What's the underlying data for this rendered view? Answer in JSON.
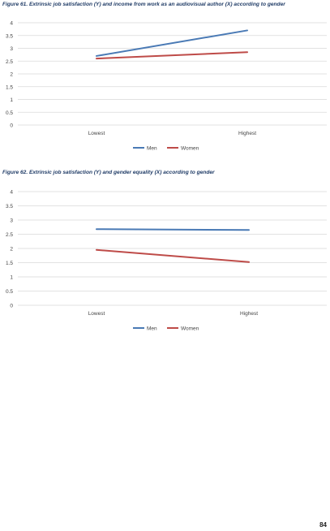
{
  "page": {
    "number": "84"
  },
  "figures": [
    {
      "caption": "Figure 61. Extrinsic job satisfaction (Y) and income from work as an audiovisual author (X) according to gender"
    },
    {
      "caption": "Figure 62. Extrinsic job satisfaction (Y) and gender equality (X) according to gender"
    }
  ],
  "colors": {
    "men": "#4a7ab5",
    "women": "#be4b48",
    "grid": "#d9d9d9",
    "text": "#444444"
  },
  "chart_data": [
    {
      "type": "line",
      "title": "",
      "categories": [
        "Lowest",
        "Highest"
      ],
      "ylim": [
        0,
        4
      ],
      "yticks": [
        "0",
        "0.5",
        "1",
        "1.5",
        "2",
        "2.5",
        "3",
        "3.5",
        "4"
      ],
      "grid": true,
      "legend": "bottom",
      "series": [
        {
          "name": "Men",
          "values": [
            2.7,
            3.7
          ]
        },
        {
          "name": "Women",
          "values": [
            2.6,
            2.85
          ]
        }
      ]
    },
    {
      "type": "line",
      "title": "",
      "categories": [
        "Lowest",
        "Highest"
      ],
      "ylim": [
        0,
        4
      ],
      "yticks": [
        "0",
        "0.5",
        "1",
        "1.5",
        "2",
        "2.5",
        "3",
        "3.5",
        "4"
      ],
      "grid": true,
      "legend": "bottom",
      "series": [
        {
          "name": "Men",
          "values": [
            2.68,
            2.65
          ]
        },
        {
          "name": "Women",
          "values": [
            1.95,
            1.52
          ]
        }
      ]
    }
  ]
}
